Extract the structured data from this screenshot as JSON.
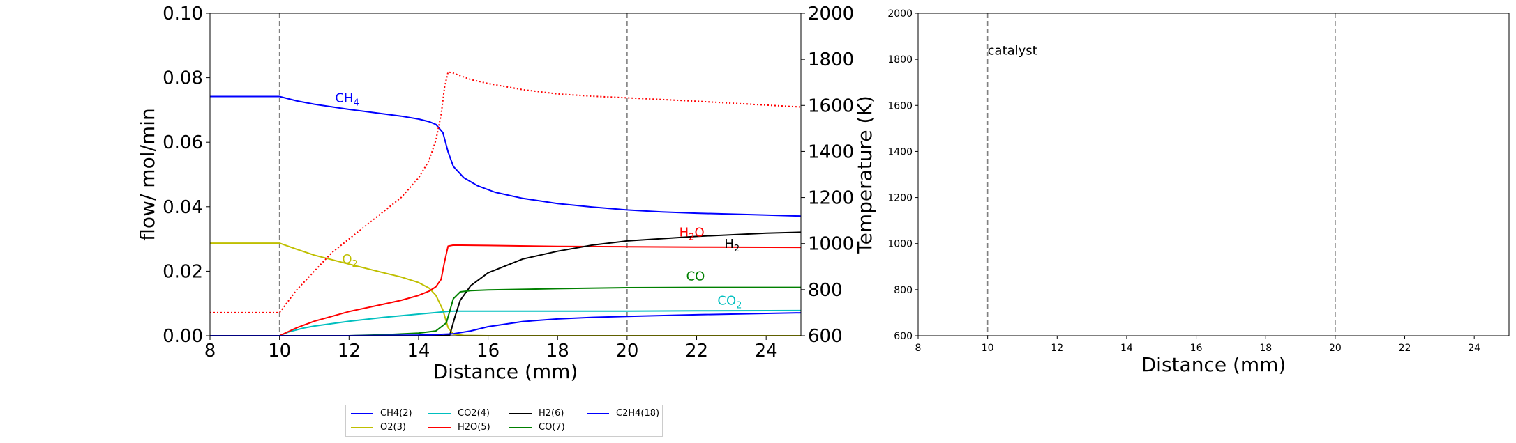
{
  "colors": {
    "CH4": "#0000ff",
    "O2": "#bfbf00",
    "CO2": "#00bfbf",
    "H2O": "#ff0000",
    "H2": "#000000",
    "CO": "#008000",
    "C2H4": "#0000ff",
    "T": "#ff0000"
  },
  "chart_data": [
    {
      "type": "line",
      "xlabel": "Distance (mm)",
      "ylabel": "flow/ mol/min",
      "ylabel_right": "Temperature (K)",
      "xlim": [
        8,
        25
      ],
      "ylim": [
        0,
        0.1
      ],
      "ylim_right": [
        600,
        2000
      ],
      "xticks": [
        "8",
        "10",
        "12",
        "14",
        "16",
        "18",
        "20",
        "22",
        "24"
      ],
      "yticks": [
        "0.00",
        "0.02",
        "0.04",
        "0.06",
        "0.08",
        "0.10"
      ],
      "yticks_right": [
        "600",
        "800",
        "1000",
        "1200",
        "1400",
        "1600",
        "1800",
        "2000"
      ],
      "vlines": [
        10,
        20
      ],
      "series": [
        {
          "name": "CH4(2)",
          "key": "CH4",
          "x": [
            8,
            10,
            10.5,
            11,
            12,
            13,
            13.5,
            14,
            14.3,
            14.5,
            14.7,
            14.85,
            15,
            15.3,
            15.7,
            16.2,
            17,
            18,
            19,
            20,
            21,
            22,
            23,
            24,
            25
          ],
          "y": [
            0.0742,
            0.0742,
            0.0728,
            0.0718,
            0.0702,
            0.0688,
            0.0681,
            0.0672,
            0.0664,
            0.0655,
            0.063,
            0.057,
            0.0525,
            0.049,
            0.0465,
            0.0445,
            0.0426,
            0.041,
            0.0399,
            0.039,
            0.0384,
            0.038,
            0.0377,
            0.0374,
            0.0371
          ]
        },
        {
          "name": "O2(3)",
          "key": "O2",
          "x": [
            8,
            10,
            10.5,
            11,
            12,
            13,
            13.5,
            14,
            14.3,
            14.5,
            14.7,
            14.85,
            15,
            15.3,
            16,
            18,
            20,
            22,
            25
          ],
          "y": [
            0.0287,
            0.0287,
            0.0268,
            0.025,
            0.0222,
            0.0195,
            0.0182,
            0.0165,
            0.0148,
            0.0125,
            0.008,
            0.0025,
            0.0005,
            0.0001,
            0,
            0,
            0,
            0,
            0
          ]
        },
        {
          "name": "CO2(4)",
          "key": "CO2",
          "x": [
            8,
            10,
            10.3,
            10.7,
            11,
            12,
            13,
            14,
            14.5,
            14.8,
            15,
            16,
            18,
            20,
            22,
            25
          ],
          "y": [
            0,
            0,
            0.0013,
            0.0024,
            0.003,
            0.0045,
            0.0057,
            0.0067,
            0.0072,
            0.0075,
            0.0076,
            0.0076,
            0.0076,
            0.0076,
            0.0077,
            0.0078
          ]
        },
        {
          "name": "H2O(5)",
          "key": "H2O",
          "x": [
            8,
            10,
            10.5,
            11,
            12,
            13,
            13.5,
            14,
            14.3,
            14.5,
            14.65,
            14.75,
            14.85,
            15,
            16,
            18,
            20,
            22,
            25
          ],
          "y": [
            0,
            0,
            0.0025,
            0.0045,
            0.0075,
            0.0098,
            0.011,
            0.0125,
            0.0138,
            0.0152,
            0.0175,
            0.023,
            0.0278,
            0.0281,
            0.028,
            0.0277,
            0.0276,
            0.0275,
            0.0274
          ]
        },
        {
          "name": "H2(6)",
          "key": "H2",
          "x": [
            8,
            10,
            12,
            14.7,
            14.9,
            15.05,
            15.2,
            15.5,
            16,
            17,
            18,
            19,
            20,
            21,
            22,
            23,
            24,
            25
          ],
          "y": [
            0,
            0,
            0,
            0,
            0.0003,
            0.006,
            0.011,
            0.0155,
            0.0195,
            0.0238,
            0.0262,
            0.0281,
            0.0294,
            0.0301,
            0.0308,
            0.0313,
            0.0318,
            0.0321
          ]
        },
        {
          "name": "CO(7)",
          "key": "CO",
          "x": [
            8,
            10,
            12,
            13,
            14,
            14.5,
            14.8,
            15,
            15.2,
            15.5,
            16,
            18,
            20,
            22,
            25
          ],
          "y": [
            0,
            0,
            0,
            0.0003,
            0.0008,
            0.0015,
            0.004,
            0.0115,
            0.0136,
            0.014,
            0.0142,
            0.0146,
            0.0149,
            0.015,
            0.015
          ]
        },
        {
          "name": "C2H4(18)",
          "key": "C2H4",
          "x": [
            8,
            10,
            12,
            14,
            14.8,
            15,
            15.5,
            16,
            17,
            18,
            19,
            20,
            22,
            25
          ],
          "y": [
            0,
            0,
            0,
            0.0002,
            0.0005,
            0.0006,
            0.0015,
            0.0028,
            0.0044,
            0.0052,
            0.0057,
            0.006,
            0.0065,
            0.0071
          ]
        },
        {
          "name": "",
          "key": "T",
          "axis": "right",
          "dotted": true,
          "x": [
            8,
            10,
            10.5,
            11,
            11.5,
            12,
            12.5,
            13,
            13.5,
            14,
            14.3,
            14.5,
            14.65,
            14.75,
            14.85,
            15,
            15.5,
            16,
            17,
            18,
            19,
            20,
            22,
            25
          ],
          "y": [
            700,
            700,
            800,
            880,
            960,
            1020,
            1080,
            1140,
            1200,
            1285,
            1360,
            1450,
            1560,
            1680,
            1745,
            1740,
            1712,
            1695,
            1668,
            1650,
            1640,
            1633,
            1618,
            1593
          ]
        }
      ],
      "annotations": [
        {
          "key": "CH4",
          "base": "CH",
          "sub": "4",
          "x": 11.6,
          "y": 0.0725
        },
        {
          "key": "O2",
          "base": "O",
          "sub": "2",
          "x": 11.8,
          "y": 0.0225
        },
        {
          "key": "H2O",
          "base": "H",
          "sub": "2",
          "tail": "O",
          "x": 21.5,
          "y": 0.0308
        },
        {
          "key": "H2",
          "base": "H",
          "sub": "2",
          "x": 22.8,
          "y": 0.0272
        },
        {
          "key": "CO",
          "base": "CO",
          "sub": "",
          "x": 21.7,
          "y": 0.0172
        },
        {
          "key": "CO2",
          "base": "CO",
          "sub": "2",
          "x": 22.6,
          "y": 0.0096
        }
      ]
    },
    {
      "type": "line",
      "xlabel": "Distance (mm)",
      "ylabel": "",
      "xlim": [
        8,
        25
      ],
      "ylim": [
        600,
        2000
      ],
      "xticks": [
        "8",
        "10",
        "12",
        "14",
        "16",
        "18",
        "20",
        "22",
        "24"
      ],
      "yticks": [
        "600",
        "800",
        "1000",
        "1200",
        "1400",
        "1600",
        "1800",
        "2000"
      ],
      "vlines": [
        10,
        20
      ],
      "text": "catalyst",
      "text_pos": [
        10,
        1820
      ],
      "series": []
    }
  ],
  "legend": [
    {
      "label": "CH4(2)",
      "key": "CH4"
    },
    {
      "label": "O2(3)",
      "key": "O2"
    },
    {
      "label": "CO2(4)",
      "key": "CO2"
    },
    {
      "label": "H2O(5)",
      "key": "H2O"
    },
    {
      "label": "H2(6)",
      "key": "H2"
    },
    {
      "label": "CO(7)",
      "key": "CO"
    },
    {
      "label": "C2H4(18)",
      "key": "C2H4"
    }
  ]
}
